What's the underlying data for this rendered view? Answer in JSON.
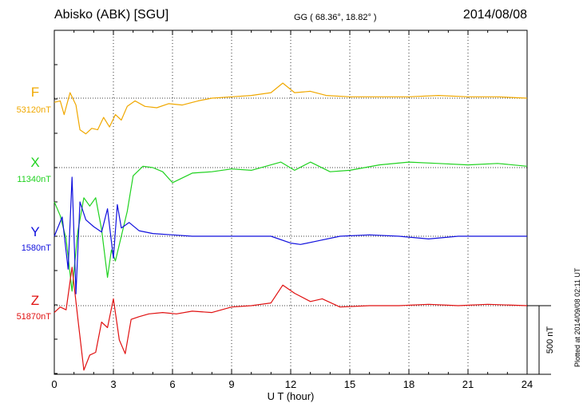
{
  "header": {
    "station": "Abisko (ABK)  [SGU]",
    "coords": "GG ( 68.36°,  18.82° )",
    "date": "2014/08/08"
  },
  "scale_label": "500 nT",
  "credit": "Plotted at 2014/09/08 02:11 UT",
  "colors": {
    "F": "#f0a800",
    "X": "#1fd21f",
    "Y": "#1010dd",
    "Z": "#e01010"
  },
  "chart_data": {
    "type": "line",
    "xlabel": "U T (hour)",
    "xlim": [
      0,
      24
    ],
    "xticks": [
      "0",
      "3",
      "6",
      "9",
      "12",
      "15",
      "18",
      "21",
      "24"
    ],
    "units": "nT",
    "scale_bar_nT": 500,
    "grid": true,
    "series": [
      {
        "name": "F",
        "baseline_label": "53120nT",
        "baseline_nT": 53120,
        "x": [
          0,
          0.3,
          0.5,
          0.8,
          1.1,
          1.3,
          1.6,
          1.9,
          2.2,
          2.5,
          2.8,
          3.1,
          3.4,
          3.7,
          4.1,
          4.6,
          5.2,
          5.8,
          6.5,
          7.3,
          8,
          9,
          10,
          11,
          11.6,
          12.2,
          13,
          13.8,
          15,
          16.5,
          18,
          19.5,
          21,
          22.5,
          24
        ],
        "y": [
          -30,
          -20,
          -120,
          40,
          -50,
          -230,
          -260,
          -220,
          -230,
          -140,
          -210,
          -120,
          -160,
          -60,
          -20,
          -60,
          -70,
          -40,
          -50,
          -20,
          0,
          10,
          20,
          40,
          110,
          40,
          50,
          20,
          10,
          10,
          10,
          20,
          10,
          10,
          0
        ]
      },
      {
        "name": "X",
        "baseline_label": "11340nT",
        "baseline_nT": 11340,
        "x": [
          0,
          0.3,
          0.6,
          0.9,
          1.2,
          1.5,
          1.8,
          2.1,
          2.4,
          2.7,
          2.9,
          3.1,
          3.4,
          3.7,
          4.0,
          4.5,
          5.0,
          5.5,
          6.0,
          7.0,
          8.0,
          9.0,
          10.0,
          11.0,
          11.5,
          12.2,
          13.0,
          14.0,
          15.0,
          16.5,
          18.0,
          19.5,
          21.0,
          22.5,
          24.0
        ],
        "y": [
          -250,
          -350,
          -520,
          -900,
          -460,
          -220,
          -280,
          -220,
          -450,
          -800,
          -600,
          -680,
          -500,
          -320,
          -60,
          10,
          0,
          -30,
          -110,
          -40,
          -30,
          -10,
          -20,
          20,
          40,
          -20,
          40,
          -30,
          -20,
          20,
          40,
          30,
          20,
          30,
          10
        ]
      },
      {
        "name": "Y",
        "baseline_label": "1580nT",
        "baseline_nT": 1580,
        "x": [
          0,
          0.4,
          0.7,
          0.9,
          1.1,
          1.3,
          1.6,
          2.0,
          2.4,
          2.7,
          3.0,
          3.2,
          3.4,
          3.8,
          4.3,
          5.0,
          6.0,
          7.0,
          8.0,
          9.0,
          10.0,
          11.0,
          12.0,
          12.5,
          13.5,
          14.5,
          16.0,
          17.5,
          19.0,
          20.5,
          22.0,
          24.0
        ],
        "y": [
          0,
          140,
          -240,
          430,
          -420,
          250,
          120,
          70,
          30,
          200,
          -160,
          230,
          60,
          100,
          40,
          20,
          10,
          0,
          0,
          0,
          0,
          0,
          -50,
          -60,
          -30,
          0,
          10,
          0,
          -20,
          0,
          0,
          0
        ]
      },
      {
        "name": "Z",
        "baseline_label": "51870nT",
        "baseline_nT": 51870,
        "x": [
          0,
          0.3,
          0.6,
          0.9,
          1.2,
          1.5,
          1.8,
          2.1,
          2.4,
          2.7,
          3.0,
          3.3,
          3.6,
          3.9,
          4.3,
          4.8,
          5.5,
          6.2,
          7.0,
          8.0,
          9.0,
          10.0,
          11.0,
          11.6,
          12.2,
          13.0,
          13.6,
          14.5,
          16.0,
          17.5,
          19.0,
          20.5,
          22.0,
          24.0
        ],
        "y": [
          -50,
          -10,
          -30,
          280,
          -100,
          -470,
          -360,
          -340,
          -120,
          -160,
          50,
          -250,
          -350,
          -100,
          -80,
          -60,
          -50,
          -60,
          -40,
          -50,
          -10,
          0,
          20,
          150,
          90,
          30,
          50,
          -10,
          0,
          0,
          10,
          0,
          10,
          0
        ]
      }
    ]
  }
}
